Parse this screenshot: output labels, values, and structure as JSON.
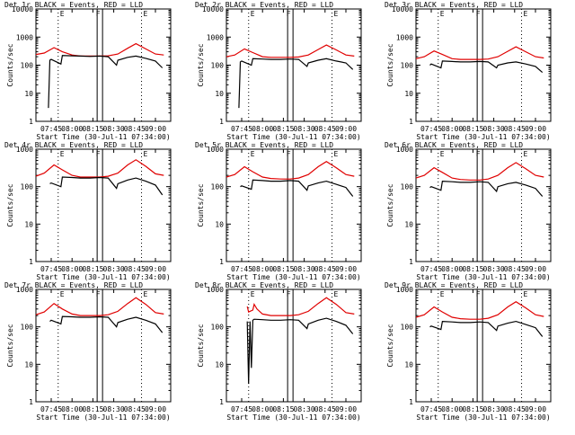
{
  "colors": {
    "background": "#ffffff",
    "axes": "#000000",
    "events": "#000000",
    "lld": "#e00000"
  },
  "x_tick_labels": [
    "07:45",
    "08:00",
    "08:15",
    "08:30",
    "08:45",
    "09:00"
  ],
  "y_tick_labels": [
    "1",
    "10",
    "100",
    "1000",
    "10000"
  ],
  "ylabel": "Counts/sec",
  "xlabel": "Start Time (30-Jul-11 07:34:00)",
  "marker_labels": [
    "E",
    "F",
    "E"
  ],
  "chart_data": [
    {
      "type": "line",
      "title": "Det 1r BLACK = Events, RED = LLD",
      "xlabel": "Start Time (30-Jul-11 07:34:00)",
      "ylabel": "Counts/sec",
      "y_scale": "log",
      "ylim": [
        1,
        10000
      ],
      "xlim": [
        "07:34",
        "09:11"
      ],
      "markers": [
        {
          "label": "E",
          "time": "07:50"
        },
        {
          "label": "F",
          "time": "08:20"
        },
        {
          "label": "E",
          "time": "08:50"
        }
      ],
      "series": [
        {
          "color": "red",
          "role": "lld",
          "x": [
            "07:34",
            "07:40",
            "07:47",
            "07:53",
            "08:00",
            "08:06",
            "08:13",
            "08:20",
            "08:26",
            "08:33",
            "08:40",
            "08:46",
            "08:53",
            "09:00",
            "09:06"
          ],
          "y": [
            240,
            270,
            420,
            300,
            230,
            210,
            210,
            210,
            215,
            250,
            400,
            580,
            380,
            250,
            230
          ]
        },
        {
          "color": "black",
          "role": "events",
          "x": [
            "07:43",
            "07:44",
            "07:45",
            "07:52",
            "07:53",
            "08:00",
            "08:06",
            "08:13",
            "08:20",
            "08:26",
            "08:32",
            "08:33",
            "08:40",
            "08:46",
            "08:53",
            "09:00",
            "09:05"
          ],
          "y": [
            3,
            150,
            160,
            110,
            220,
            215,
            210,
            205,
            210,
            200,
            100,
            150,
            190,
            210,
            175,
            140,
            80
          ]
        }
      ]
    },
    {
      "type": "line",
      "title": "Det 2r BLACK = Events, RED = LLD",
      "xlabel": "Start Time (30-Jul-11 07:34:00)",
      "ylabel": "Counts/sec",
      "y_scale": "log",
      "ylim": [
        1,
        10000
      ],
      "xlim": [
        "07:34",
        "09:11"
      ],
      "markers": [
        {
          "label": "E",
          "time": "07:50"
        },
        {
          "label": "F",
          "time": "08:20"
        },
        {
          "label": "E",
          "time": "08:50"
        }
      ],
      "series": [
        {
          "color": "red",
          "role": "lld",
          "x": [
            "07:34",
            "07:40",
            "07:47",
            "07:53",
            "08:00",
            "08:06",
            "08:13",
            "08:20",
            "08:26",
            "08:33",
            "08:40",
            "08:46",
            "08:53",
            "09:00",
            "09:06"
          ],
          "y": [
            200,
            230,
            380,
            280,
            200,
            190,
            190,
            190,
            195,
            230,
            360,
            520,
            350,
            230,
            210
          ]
        },
        {
          "color": "black",
          "role": "events",
          "x": [
            "07:43",
            "07:44",
            "07:45",
            "07:52",
            "07:53",
            "08:00",
            "08:06",
            "08:13",
            "08:20",
            "08:26",
            "08:32",
            "08:33",
            "08:40",
            "08:46",
            "08:53",
            "09:00",
            "09:05"
          ],
          "y": [
            3,
            130,
            140,
            100,
            170,
            165,
            160,
            160,
            165,
            160,
            90,
            120,
            150,
            170,
            140,
            120,
            70
          ]
        }
      ]
    },
    {
      "type": "line",
      "title": "Det 3r BLACK = Events, RED = LLD",
      "xlabel": "Start Time (30-Jul-11 07:34:00)",
      "ylabel": "Counts/sec",
      "y_scale": "log",
      "ylim": [
        1,
        10000
      ],
      "xlim": [
        "07:34",
        "09:11"
      ],
      "markers": [
        {
          "label": "E",
          "time": "07:50"
        },
        {
          "label": "F",
          "time": "08:20"
        },
        {
          "label": "E",
          "time": "08:50"
        }
      ],
      "series": [
        {
          "color": "red",
          "role": "lld",
          "x": [
            "07:34",
            "07:40",
            "07:47",
            "07:53",
            "08:00",
            "08:06",
            "08:13",
            "08:20",
            "08:26",
            "08:33",
            "08:40",
            "08:46",
            "08:53",
            "09:00",
            "09:06"
          ],
          "y": [
            170,
            200,
            320,
            240,
            170,
            160,
            160,
            160,
            165,
            200,
            310,
            450,
            300,
            200,
            180
          ]
        },
        {
          "color": "black",
          "role": "events",
          "x": [
            "07:44",
            "07:45",
            "07:52",
            "07:53",
            "08:00",
            "08:06",
            "08:13",
            "08:20",
            "08:26",
            "08:32",
            "08:33",
            "08:40",
            "08:46",
            "08:53",
            "09:00",
            "09:05"
          ],
          "y": [
            100,
            110,
            80,
            140,
            135,
            130,
            130,
            135,
            130,
            80,
            100,
            120,
            130,
            110,
            90,
            55
          ]
        }
      ]
    },
    {
      "type": "line",
      "title": "Det 4r BLACK = Events, RED = LLD",
      "xlabel": "Start Time (30-Jul-11 07:34:00)",
      "ylabel": "Counts/sec",
      "y_scale": "log",
      "ylim": [
        1,
        1000
      ],
      "xlim": [
        "07:34",
        "09:11"
      ],
      "markers": [
        {
          "label": "E",
          "time": "07:50"
        },
        {
          "label": "F",
          "time": "08:20"
        },
        {
          "label": "E",
          "time": "08:50"
        }
      ],
      "series": [
        {
          "color": "red",
          "role": "lld",
          "x": [
            "07:34",
            "07:40",
            "07:47",
            "07:53",
            "08:00",
            "08:06",
            "08:13",
            "08:20",
            "08:26",
            "08:33",
            "08:40",
            "08:46",
            "08:53",
            "09:00",
            "09:06"
          ],
          "y": [
            190,
            230,
            380,
            280,
            200,
            180,
            180,
            180,
            190,
            230,
            380,
            520,
            350,
            220,
            200
          ]
        },
        {
          "color": "black",
          "role": "events",
          "x": [
            "07:44",
            "07:45",
            "07:52",
            "07:53",
            "08:00",
            "08:06",
            "08:13",
            "08:20",
            "08:26",
            "08:32",
            "08:33",
            "08:40",
            "08:46",
            "08:53",
            "09:00",
            "09:05"
          ],
          "y": [
            120,
            125,
            100,
            180,
            175,
            170,
            170,
            175,
            170,
            90,
            120,
            150,
            170,
            140,
            110,
            60
          ]
        }
      ]
    },
    {
      "type": "line",
      "title": "Det 5r BLACK = Events, RED = LLD",
      "xlabel": "Start Time (30-Jul-11 07:34:00)",
      "ylabel": "Counts/sec",
      "y_scale": "log",
      "ylim": [
        1,
        1000
      ],
      "xlim": [
        "07:34",
        "09:11"
      ],
      "markers": [
        {
          "label": "E",
          "time": "07:50"
        },
        {
          "label": "F",
          "time": "08:20"
        },
        {
          "label": "E",
          "time": "08:50"
        }
      ],
      "series": [
        {
          "color": "red",
          "role": "lld",
          "x": [
            "07:34",
            "07:40",
            "07:47",
            "07:53",
            "08:00",
            "08:06",
            "08:13",
            "08:20",
            "08:26",
            "08:33",
            "08:40",
            "08:46",
            "08:53",
            "09:00",
            "09:06"
          ],
          "y": [
            180,
            210,
            340,
            250,
            180,
            165,
            160,
            160,
            170,
            210,
            340,
            470,
            320,
            210,
            190
          ]
        },
        {
          "color": "black",
          "role": "events",
          "x": [
            "07:44",
            "07:45",
            "07:52",
            "07:53",
            "08:00",
            "08:06",
            "08:13",
            "08:20",
            "08:26",
            "08:32",
            "08:33",
            "08:40",
            "08:46",
            "08:53",
            "09:00",
            "09:05"
          ],
          "y": [
            100,
            105,
            85,
            150,
            145,
            140,
            140,
            145,
            140,
            80,
            105,
            125,
            140,
            115,
            95,
            55
          ]
        }
      ]
    },
    {
      "type": "line",
      "title": "Det 6r BLACK = Events, RED = LLD",
      "xlabel": "Start Time (30-Jul-11 07:34:00)",
      "ylabel": "Counts/sec",
      "y_scale": "log",
      "ylim": [
        1,
        1000
      ],
      "xlim": [
        "07:34",
        "09:11"
      ],
      "markers": [
        {
          "label": "E",
          "time": "07:50"
        },
        {
          "label": "F",
          "time": "08:20"
        },
        {
          "label": "E",
          "time": "08:50"
        }
      ],
      "series": [
        {
          "color": "red",
          "role": "lld",
          "x": [
            "07:34",
            "07:40",
            "07:47",
            "07:53",
            "08:00",
            "08:06",
            "08:13",
            "08:20",
            "08:26",
            "08:33",
            "08:40",
            "08:46",
            "08:53",
            "09:00",
            "09:06"
          ],
          "y": [
            170,
            200,
            320,
            240,
            170,
            155,
            150,
            150,
            160,
            200,
            320,
            440,
            300,
            200,
            180
          ]
        },
        {
          "color": "black",
          "role": "events",
          "x": [
            "07:44",
            "07:45",
            "07:52",
            "07:53",
            "08:00",
            "08:06",
            "08:13",
            "08:20",
            "08:26",
            "08:32",
            "08:33",
            "08:40",
            "08:46",
            "08:53",
            "09:00",
            "09:05"
          ],
          "y": [
            95,
            100,
            80,
            140,
            135,
            130,
            130,
            135,
            130,
            75,
            100,
            120,
            130,
            110,
            90,
            55
          ]
        }
      ]
    },
    {
      "type": "line",
      "title": "Det 7r BLACK = Events, RED = LLD",
      "xlabel": "Start Time (30-Jul-11 07:34:00)",
      "ylabel": "Counts/sec",
      "y_scale": "log",
      "ylim": [
        1,
        1000
      ],
      "xlim": [
        "07:34",
        "09:11"
      ],
      "markers": [
        {
          "label": "E",
          "time": "07:50"
        },
        {
          "label": "F",
          "time": "08:20"
        },
        {
          "label": "E",
          "time": "08:50"
        }
      ],
      "series": [
        {
          "color": "red",
          "role": "lld",
          "x": [
            "07:34",
            "07:40",
            "07:47",
            "07:53",
            "08:00",
            "08:06",
            "08:13",
            "08:20",
            "08:26",
            "08:33",
            "08:40",
            "08:46",
            "08:53",
            "09:00",
            "09:06"
          ],
          "y": [
            210,
            250,
            420,
            300,
            220,
            200,
            200,
            200,
            210,
            260,
            420,
            600,
            400,
            240,
            220
          ]
        },
        {
          "color": "black",
          "role": "events",
          "x": [
            "07:44",
            "07:45",
            "07:52",
            "07:53",
            "08:00",
            "08:06",
            "08:13",
            "08:20",
            "08:26",
            "08:32",
            "08:33",
            "08:40",
            "08:46",
            "08:53",
            "09:00",
            "09:05"
          ],
          "y": [
            140,
            150,
            120,
            190,
            185,
            180,
            180,
            185,
            180,
            100,
            130,
            160,
            180,
            150,
            120,
            70
          ]
        }
      ]
    },
    {
      "type": "line",
      "title": "Det 8r BLACK = Events, RED = LLD",
      "xlabel": "Start Time (30-Jul-11 07:34:00)",
      "ylabel": "Counts/sec",
      "y_scale": "log",
      "ylim": [
        1,
        1000
      ],
      "xlim": [
        "07:34",
        "09:11"
      ],
      "markers": [
        {
          "label": "E",
          "time": "07:50"
        },
        {
          "label": "F",
          "time": "08:20"
        },
        {
          "label": "E",
          "time": "08:50"
        }
      ],
      "series": [
        {
          "color": "red",
          "role": "lld",
          "x": [
            "07:49",
            "07:50",
            "07:53",
            "07:54",
            "07:56",
            "08:00",
            "08:06",
            "08:13",
            "08:20",
            "08:26",
            "08:33",
            "08:40",
            "08:46",
            "08:53",
            "09:00",
            "09:06"
          ],
          "y": [
            350,
            250,
            280,
            400,
            300,
            220,
            200,
            200,
            200,
            210,
            260,
            420,
            600,
            400,
            240,
            220
          ]
        },
        {
          "color": "black",
          "role": "events",
          "x": [
            "07:49",
            "07:50",
            "07:51",
            "07:52",
            "07:53",
            "07:54",
            "08:00",
            "08:06",
            "08:13",
            "08:20",
            "08:26",
            "08:32",
            "08:33",
            "08:40",
            "08:46",
            "08:53",
            "09:00",
            "09:05"
          ],
          "y": [
            140,
            3,
            140,
            8,
            150,
            160,
            155,
            150,
            150,
            155,
            150,
            90,
            120,
            150,
            170,
            140,
            110,
            65
          ]
        }
      ]
    },
    {
      "type": "line",
      "title": "Det 9r BLACK = Events, RED = LLD",
      "xlabel": "Start Time (30-Jul-11 07:34:00)",
      "ylabel": "Counts/sec",
      "y_scale": "log",
      "ylim": [
        1,
        1000
      ],
      "xlim": [
        "07:34",
        "09:11"
      ],
      "markers": [
        {
          "label": "E",
          "time": "07:50"
        },
        {
          "label": "F",
          "time": "08:20"
        },
        {
          "label": "E",
          "time": "08:50"
        }
      ],
      "series": [
        {
          "color": "red",
          "role": "lld",
          "x": [
            "07:34",
            "07:40",
            "07:47",
            "07:53",
            "08:00",
            "08:06",
            "08:13",
            "08:20",
            "08:26",
            "08:33",
            "08:40",
            "08:46",
            "08:53",
            "09:00",
            "09:06"
          ],
          "y": [
            180,
            210,
            340,
            250,
            180,
            165,
            160,
            160,
            170,
            210,
            340,
            470,
            320,
            210,
            190
          ]
        },
        {
          "color": "black",
          "role": "events",
          "x": [
            "07:44",
            "07:45",
            "07:52",
            "07:53",
            "08:00",
            "08:06",
            "08:13",
            "08:20",
            "08:26",
            "08:32",
            "08:33",
            "08:40",
            "08:46",
            "08:53",
            "09:00",
            "09:05"
          ],
          "y": [
            100,
            105,
            85,
            140,
            135,
            130,
            130,
            135,
            130,
            80,
            105,
            125,
            140,
            115,
            95,
            55
          ]
        }
      ]
    }
  ]
}
